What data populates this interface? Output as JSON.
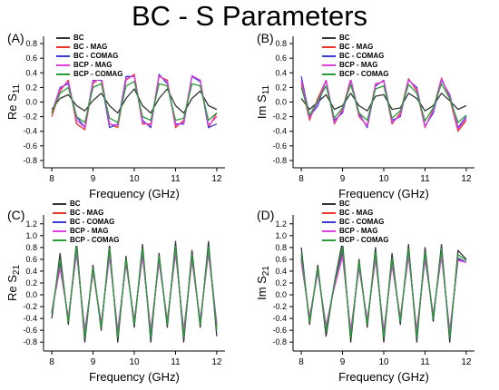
{
  "title": "BC - S Parameters",
  "chart_data": [
    {
      "panel_label": "(A)",
      "type": "line",
      "xlabel": "Frequency (GHz)",
      "ylabel_main": "Re S",
      "ylabel_sub": "11",
      "xlim": [
        7.8,
        12.2
      ],
      "ylim": [
        -0.9,
        0.9
      ],
      "xticks": [
        "8",
        "9",
        "10",
        "11",
        "12"
      ],
      "yticks": [
        "-0.8",
        "-0.6",
        "-0.4",
        "-0.2",
        "0.0",
        "0.2",
        "0.4",
        "0.6",
        "0.8"
      ],
      "x": [
        8.0,
        8.2,
        8.4,
        8.6,
        8.8,
        9.0,
        9.2,
        9.4,
        9.6,
        9.8,
        10.0,
        10.2,
        10.4,
        10.6,
        10.8,
        11.0,
        11.2,
        11.4,
        11.6,
        11.8,
        12.0
      ],
      "series": [
        {
          "name": "BC",
          "color": "#333333",
          "values": [
            -0.1,
            0.05,
            0.1,
            -0.05,
            -0.12,
            0.02,
            0.12,
            -0.05,
            -0.15,
            0.05,
            0.18,
            -0.05,
            -0.15,
            0.05,
            0.18,
            -0.05,
            -0.15,
            0.05,
            0.15,
            -0.05,
            -0.1
          ]
        },
        {
          "name": "BC - MAG",
          "color": "#e8392c",
          "values": [
            -0.2,
            0.15,
            0.3,
            -0.3,
            -0.38,
            0.25,
            0.35,
            -0.3,
            -0.35,
            0.3,
            0.38,
            -0.3,
            -0.3,
            0.35,
            0.3,
            -0.35,
            -0.25,
            0.35,
            0.3,
            -0.35,
            -0.15
          ]
        },
        {
          "name": "BC - COMAG",
          "color": "#3b3bd8",
          "values": [
            -0.15,
            0.2,
            0.25,
            -0.2,
            -0.35,
            0.3,
            0.3,
            -0.35,
            -0.3,
            0.35,
            0.35,
            -0.25,
            -0.35,
            0.38,
            0.25,
            -0.3,
            -0.3,
            0.35,
            0.28,
            -0.35,
            -0.3
          ]
        },
        {
          "name": "BCP - MAG",
          "color": "#e040e0",
          "values": [
            -0.15,
            0.18,
            0.28,
            -0.25,
            -0.35,
            0.28,
            0.32,
            -0.3,
            -0.32,
            0.32,
            0.36,
            -0.28,
            -0.32,
            0.36,
            0.28,
            -0.32,
            -0.28,
            0.36,
            0.3,
            -0.32,
            -0.2
          ]
        },
        {
          "name": "BCP - COMAG",
          "color": "#2a9d3a",
          "values": [
            -0.15,
            0.12,
            0.2,
            -0.2,
            -0.28,
            0.2,
            0.25,
            -0.22,
            -0.28,
            0.22,
            0.28,
            -0.2,
            -0.25,
            0.25,
            0.22,
            -0.25,
            -0.22,
            0.25,
            0.22,
            -0.25,
            -0.15
          ]
        }
      ]
    },
    {
      "panel_label": "(B)",
      "type": "line",
      "xlabel": "Frequency (GHz)",
      "ylabel_main": "Im S",
      "ylabel_sub": "11",
      "xlim": [
        7.8,
        12.2
      ],
      "ylim": [
        -0.9,
        0.9
      ],
      "xticks": [
        "8",
        "9",
        "10",
        "11",
        "12"
      ],
      "yticks": [
        "-0.8",
        "-0.6",
        "-0.4",
        "-0.2",
        "0.0",
        "0.2",
        "0.4",
        "0.6",
        "0.8"
      ],
      "x": [
        8.0,
        8.2,
        8.4,
        8.6,
        8.8,
        9.0,
        9.2,
        9.4,
        9.6,
        9.8,
        10.0,
        10.2,
        10.4,
        10.6,
        10.8,
        11.0,
        11.2,
        11.4,
        11.6,
        11.8,
        12.0
      ],
      "series": [
        {
          "name": "BC",
          "color": "#333333",
          "values": [
            0.05,
            -0.1,
            0.0,
            0.1,
            -0.1,
            -0.05,
            0.12,
            -0.05,
            -0.12,
            0.08,
            0.1,
            -0.1,
            -0.08,
            0.12,
            0.05,
            -0.12,
            -0.05,
            0.12,
            0.02,
            -0.1,
            -0.05
          ]
        },
        {
          "name": "BC - MAG",
          "color": "#e8392c",
          "values": [
            0.25,
            -0.25,
            0.05,
            0.3,
            -0.3,
            -0.1,
            0.32,
            -0.2,
            -0.32,
            0.25,
            0.28,
            -0.3,
            -0.15,
            0.32,
            0.15,
            -0.35,
            -0.1,
            0.33,
            0.05,
            -0.4,
            -0.25
          ]
        },
        {
          "name": "BC - COMAG",
          "color": "#3b3bd8",
          "values": [
            0.35,
            -0.2,
            -0.05,
            0.3,
            -0.25,
            -0.15,
            0.3,
            -0.15,
            -0.35,
            0.22,
            0.3,
            -0.25,
            -0.2,
            0.3,
            0.2,
            -0.33,
            -0.15,
            0.3,
            0.1,
            -0.35,
            -0.2
          ]
        },
        {
          "name": "BCP - MAG",
          "color": "#e040e0",
          "values": [
            0.3,
            -0.22,
            0.0,
            0.3,
            -0.28,
            -0.12,
            0.31,
            -0.18,
            -0.33,
            0.24,
            0.29,
            -0.28,
            -0.18,
            0.31,
            0.18,
            -0.34,
            -0.12,
            0.32,
            0.08,
            -0.37,
            -0.22
          ]
        },
        {
          "name": "BCP - COMAG",
          "color": "#2a9d3a",
          "values": [
            0.2,
            -0.18,
            0.02,
            0.22,
            -0.22,
            -0.08,
            0.24,
            -0.15,
            -0.25,
            0.18,
            0.22,
            -0.22,
            -0.12,
            0.24,
            0.12,
            -0.26,
            -0.08,
            0.25,
            0.05,
            -0.28,
            -0.18
          ]
        }
      ]
    },
    {
      "panel_label": "(C)",
      "type": "line",
      "xlabel": "Frequency (GHz)",
      "ylabel_main": "Re S",
      "ylabel_sub": "21",
      "xlim": [
        7.8,
        12.2
      ],
      "ylim": [
        -0.95,
        1.35
      ],
      "xticks": [
        "8",
        "9",
        "10",
        "11",
        "12"
      ],
      "yticks": [
        "-0.8",
        "-0.6",
        "-0.4",
        "-0.2",
        "0.0",
        "0.2",
        "0.4",
        "0.6",
        "0.8",
        "1.0",
        "1.2"
      ],
      "x": [
        8.0,
        8.2,
        8.4,
        8.6,
        8.8,
        9.0,
        9.2,
        9.4,
        9.6,
        9.8,
        10.0,
        10.2,
        10.4,
        10.6,
        10.8,
        11.0,
        11.2,
        11.4,
        11.6,
        11.8,
        12.0
      ],
      "series": [
        {
          "name": "BC",
          "color": "#333333",
          "values": [
            -0.4,
            0.7,
            -0.5,
            0.9,
            -0.8,
            0.5,
            -0.6,
            0.85,
            -0.8,
            0.65,
            -0.55,
            0.85,
            -0.8,
            0.7,
            -0.55,
            0.9,
            -0.8,
            0.75,
            -0.55,
            0.9,
            -0.7
          ]
        },
        {
          "name": "BC - MAG",
          "color": "#e8392c",
          "values": [
            -0.3,
            0.5,
            -0.4,
            0.75,
            -0.65,
            0.4,
            -0.5,
            0.7,
            -0.65,
            0.55,
            -0.45,
            0.7,
            -0.65,
            0.6,
            -0.45,
            0.75,
            -0.65,
            0.6,
            -0.45,
            0.75,
            -0.55
          ]
        },
        {
          "name": "BC - COMAG",
          "color": "#3b3bd8",
          "values": [
            -0.3,
            0.55,
            -0.42,
            0.78,
            -0.68,
            0.42,
            -0.52,
            0.72,
            -0.68,
            0.57,
            -0.47,
            0.72,
            -0.68,
            0.62,
            -0.47,
            0.78,
            -0.68,
            0.62,
            -0.47,
            0.78,
            -0.5
          ]
        },
        {
          "name": "BCP - MAG",
          "color": "#e040e0",
          "values": [
            -0.28,
            0.45,
            -0.38,
            0.7,
            -0.6,
            0.38,
            -0.48,
            0.65,
            -0.6,
            0.52,
            -0.43,
            0.65,
            -0.6,
            0.55,
            -0.43,
            0.7,
            -0.6,
            0.58,
            -0.43,
            0.7,
            -0.5
          ]
        },
        {
          "name": "BCP - COMAG",
          "color": "#2a9d3a",
          "values": [
            -0.32,
            0.6,
            -0.45,
            0.82,
            -0.72,
            0.45,
            -0.55,
            0.78,
            -0.72,
            0.6,
            -0.5,
            0.78,
            -0.72,
            0.65,
            -0.5,
            0.82,
            -0.72,
            0.68,
            -0.5,
            0.82,
            -0.6
          ]
        }
      ]
    },
    {
      "panel_label": "(D)",
      "type": "line",
      "xlabel": "Frequency (GHz)",
      "ylabel_main": "Im S",
      "ylabel_sub": "21",
      "xlim": [
        7.8,
        12.2
      ],
      "ylim": [
        -0.95,
        1.35
      ],
      "xticks": [
        "8",
        "9",
        "10",
        "11",
        "12"
      ],
      "yticks": [
        "-0.8",
        "-0.6",
        "-0.4",
        "-0.2",
        "0.0",
        "0.2",
        "0.4",
        "0.6",
        "0.8",
        "1.0",
        "1.2"
      ],
      "x": [
        8.0,
        8.2,
        8.4,
        8.6,
        8.8,
        9.0,
        9.2,
        9.4,
        9.6,
        9.8,
        10.0,
        10.2,
        10.4,
        10.6,
        10.8,
        11.0,
        11.2,
        11.4,
        11.6,
        11.8,
        12.0
      ],
      "series": [
        {
          "name": "BC",
          "color": "#333333",
          "values": [
            0.8,
            -0.5,
            0.5,
            -0.7,
            0.2,
            0.9,
            -0.8,
            0.6,
            -0.55,
            0.8,
            -0.8,
            0.7,
            -0.5,
            0.85,
            -0.8,
            0.8,
            -0.45,
            0.85,
            -0.8,
            0.75,
            0.6
          ]
        },
        {
          "name": "BC - MAG",
          "color": "#e8392c",
          "values": [
            0.6,
            -0.4,
            0.4,
            -0.55,
            0.15,
            0.7,
            -0.65,
            0.5,
            -0.45,
            0.65,
            -0.65,
            0.55,
            -0.4,
            0.7,
            -0.65,
            0.65,
            -0.35,
            0.7,
            -0.65,
            0.6,
            0.55
          ]
        },
        {
          "name": "BC - COMAG",
          "color": "#3b3bd8",
          "values": [
            0.65,
            -0.42,
            0.42,
            -0.58,
            0.18,
            0.75,
            -0.68,
            0.52,
            -0.48,
            0.68,
            -0.68,
            0.58,
            -0.42,
            0.72,
            -0.68,
            0.68,
            -0.38,
            0.72,
            -0.68,
            0.62,
            0.55
          ]
        },
        {
          "name": "BCP - MAG",
          "color": "#e040e0",
          "values": [
            0.55,
            -0.38,
            0.38,
            -0.52,
            0.12,
            0.65,
            -0.6,
            0.45,
            -0.42,
            0.6,
            -0.6,
            0.5,
            -0.38,
            0.65,
            -0.6,
            0.6,
            -0.33,
            0.65,
            -0.6,
            0.58,
            0.55
          ]
        },
        {
          "name": "BCP - COMAG",
          "color": "#2a9d3a",
          "values": [
            0.7,
            -0.45,
            0.45,
            -0.62,
            0.18,
            0.8,
            -0.72,
            0.55,
            -0.5,
            0.72,
            -0.72,
            0.62,
            -0.45,
            0.78,
            -0.72,
            0.72,
            -0.4,
            0.78,
            -0.72,
            0.68,
            0.58
          ]
        }
      ]
    }
  ]
}
